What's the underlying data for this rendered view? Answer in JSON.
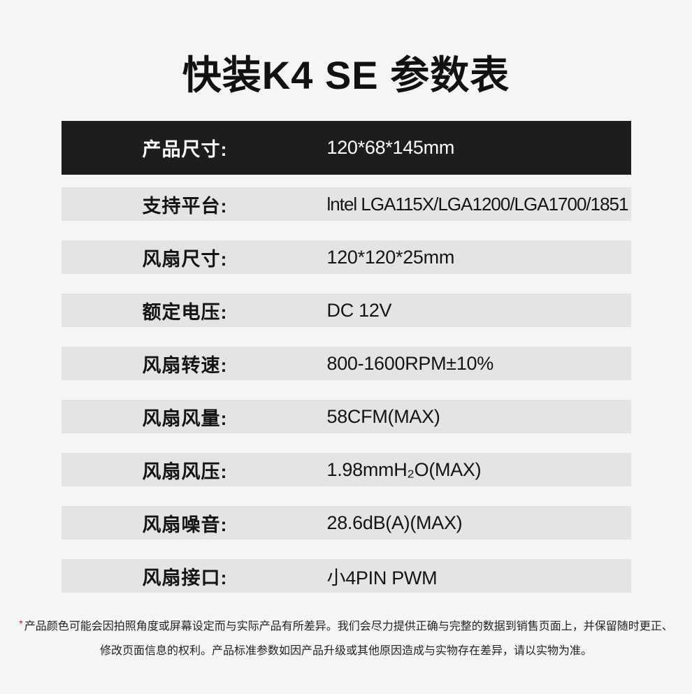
{
  "title": "快装K4 SE  参数表",
  "table": {
    "rows": [
      {
        "label": "产品尺寸:",
        "value": "120*68*145mm",
        "dark": true
      },
      {
        "label": "支持平台:",
        "value": "lntel LGA115X/LGA1200/LGA1700/1851",
        "dark": false
      },
      {
        "label": "风扇尺寸:",
        "value": "120*120*25mm",
        "dark": false
      },
      {
        "label": "额定电压:",
        "value": "DC 12V",
        "dark": false
      },
      {
        "label": "风扇转速:",
        "value": "800-1600RPM±10%",
        "dark": false
      },
      {
        "label": "风扇风量:",
        "value": "58CFM(MAX)",
        "dark": false
      },
      {
        "label": "风扇风压:",
        "value": "1.98mmH₂O(MAX)",
        "dark": false
      },
      {
        "label": "风扇噪音:",
        "value": "28.6dB(A)(MAX)",
        "dark": false
      },
      {
        "label": "风扇接口:",
        "value": "小4PIN PWM",
        "dark": false
      }
    ]
  },
  "footer": {
    "asterisk": "*",
    "line1": "产品颜色可能会因拍照角度或屏幕设定而与实际产品有所差异。我们会尽力提供正确与完整的数据到销售页面上，并保留随时更正、",
    "line2": "修改页面信息的权利。产品标准参数如因产品升级或其他原因造成与实物存在差异，请以实物为准。"
  },
  "colors": {
    "page_bg": "#f5f5f6",
    "header_row_bg": "#1d1d1d",
    "row_bg": "#e4e4e4",
    "title_text": "#111111",
    "row_text": "#141414",
    "header_row_text": "#ffffff",
    "asterisk_red": "#e60012",
    "footer_text": "#222222"
  }
}
